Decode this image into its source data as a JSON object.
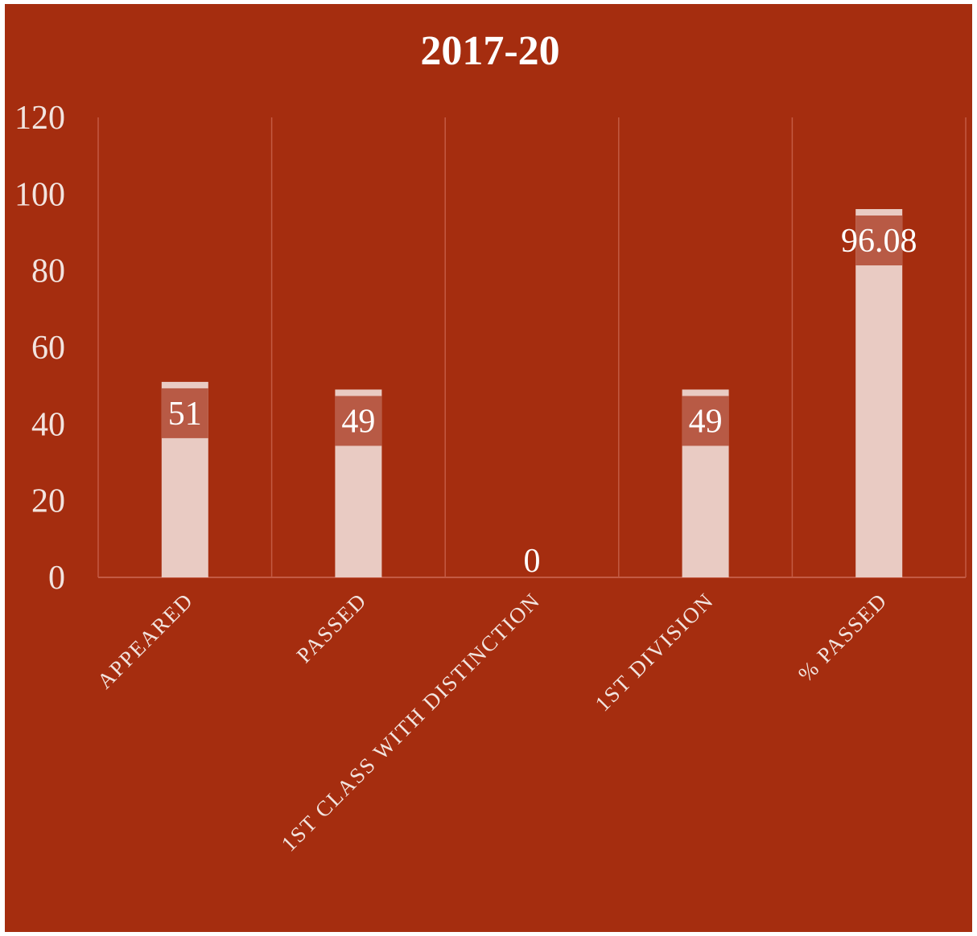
{
  "chart_data": {
    "type": "bar",
    "title": "2017-20",
    "categories": [
      "APPEARED",
      "PASSED",
      "1ST CLASS WITH DISTINCTION",
      "1ST DIVISION",
      "% PASSED"
    ],
    "values": [
      51,
      49,
      0,
      49,
      96.08
    ],
    "data_labels": [
      "51",
      "49",
      "0",
      "49",
      "96.08"
    ],
    "ylim": [
      0,
      120
    ],
    "yticks": [
      0,
      20,
      40,
      60,
      80,
      100,
      120
    ],
    "ytick_labels": [
      "0",
      "20",
      "40",
      "60",
      "80",
      "100",
      "120"
    ],
    "grid": "vertical separators between categories",
    "legend": "none",
    "colors": {
      "background": "#a52d0f",
      "bar": "#e9cbc3",
      "label_box": "#b85a45",
      "text": "#ffffff",
      "gridline": "#c35a43"
    }
  }
}
